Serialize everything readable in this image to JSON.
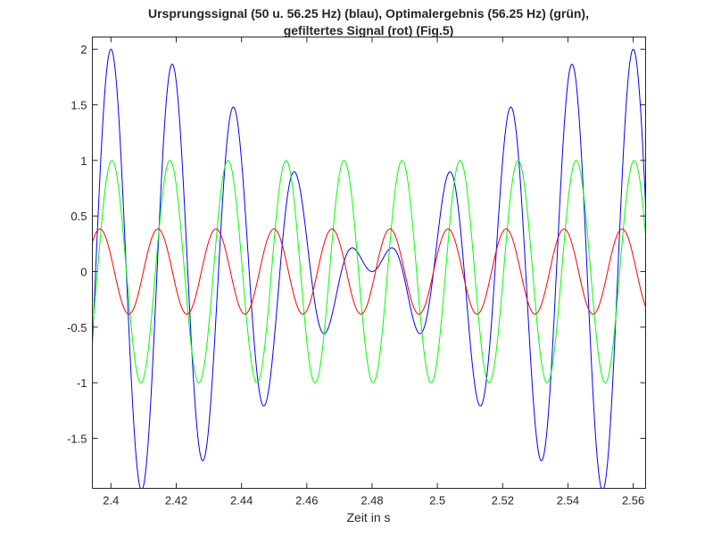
{
  "chart_data": {
    "type": "line",
    "title": [
      "Ursprungssignal (50 u. 56.25 Hz) (blau), Optimalergebnis (56.25 Hz) (grün),",
      "gefiltertes Signal (rot) (Fig.5)"
    ],
    "xlabel": "Zeit in s",
    "ylabel": "",
    "xlim": [
      2.3943,
      2.5638
    ],
    "ylim": [
      -1.95,
      2.11
    ],
    "xticks": [
      2.4,
      2.42,
      2.44,
      2.46,
      2.48,
      2.5,
      2.52,
      2.54,
      2.56
    ],
    "xtick_labels": [
      "2.4",
      "2.42",
      "2.44",
      "2.46",
      "2.48",
      "2.5",
      "2.52",
      "2.54",
      "2.56"
    ],
    "yticks": [
      -1.5,
      -1,
      -0.5,
      0,
      0.5,
      1,
      1.5,
      2
    ],
    "ytick_labels": [
      "-1.5",
      "-1",
      "-0.5",
      "0",
      "0.5",
      "1",
      "1.5",
      "2"
    ],
    "grid": false,
    "series": [
      {
        "name": "Ursprungssignal",
        "color": "#0000ff",
        "components": [
          {
            "amplitude": 1,
            "frequency_hz": 50,
            "peak_time": 2.4
          },
          {
            "amplitude": 1,
            "frequency_hz": 56.25,
            "peak_time": 2.4
          }
        ]
      },
      {
        "name": "Optimalergebnis",
        "color": "#00ff00",
        "components": [
          {
            "amplitude": 1,
            "frequency_hz": 56.25,
            "peak_time": 2.4003
          }
        ]
      },
      {
        "name": "gefiltertes Signal",
        "color": "#ff0000",
        "components": [
          {
            "amplitude": 0.383,
            "frequency_hz": 56.25,
            "peak_time": 2.3966
          }
        ]
      }
    ]
  }
}
